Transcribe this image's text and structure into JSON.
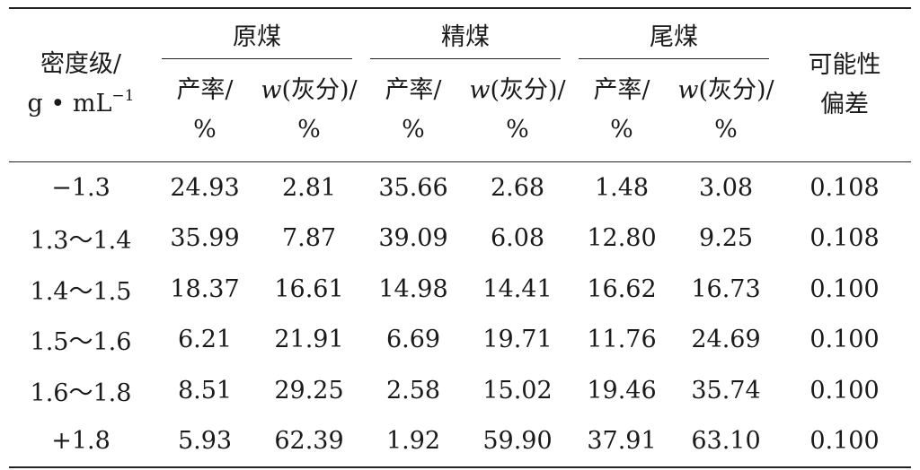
{
  "table": {
    "stub_header": {
      "line1": "密度级/",
      "line2_main": "g • mL",
      "line2_sup": "−1"
    },
    "groups": [
      {
        "label": "原煤"
      },
      {
        "label": "精煤"
      },
      {
        "label": "尾煤"
      }
    ],
    "sub_headers": {
      "yield_line1": "产率/",
      "yield_line2": "%",
      "ash_w": "w",
      "ash_rest": "(灰分)/",
      "ash_line2": "%"
    },
    "deviation_header": {
      "line1": "可能性",
      "line2": "偏差"
    },
    "rows": [
      {
        "density": "−1.3",
        "raw_yield": "24.93",
        "raw_ash": "2.81",
        "clean_yield": "35.66",
        "clean_ash": "2.68",
        "tail_yield": "1.48",
        "tail_ash": "3.08",
        "deviation": "0.108"
      },
      {
        "density": "1.3～1.4",
        "raw_yield": "35.99",
        "raw_ash": "7.87",
        "clean_yield": "39.09",
        "clean_ash": "6.08",
        "tail_yield": "12.80",
        "tail_ash": "9.25",
        "deviation": "0.108"
      },
      {
        "density": "1.4～1.5",
        "raw_yield": "18.37",
        "raw_ash": "16.61",
        "clean_yield": "14.98",
        "clean_ash": "14.41",
        "tail_yield": "16.62",
        "tail_ash": "16.73",
        "deviation": "0.100"
      },
      {
        "density": "1.5～1.6",
        "raw_yield": "6.21",
        "raw_ash": "21.91",
        "clean_yield": "6.69",
        "clean_ash": "19.71",
        "tail_yield": "11.76",
        "tail_ash": "24.69",
        "deviation": "0.100"
      },
      {
        "density": "1.6～1.8",
        "raw_yield": "8.51",
        "raw_ash": "29.25",
        "clean_yield": "2.58",
        "clean_ash": "15.02",
        "tail_yield": "19.46",
        "tail_ash": "35.74",
        "deviation": "0.100"
      },
      {
        "density": "+1.8",
        "raw_yield": "5.93",
        "raw_ash": "62.39",
        "clean_yield": "1.92",
        "clean_ash": "59.90",
        "tail_yield": "37.91",
        "tail_ash": "63.10",
        "deviation": "0.100"
      }
    ]
  }
}
